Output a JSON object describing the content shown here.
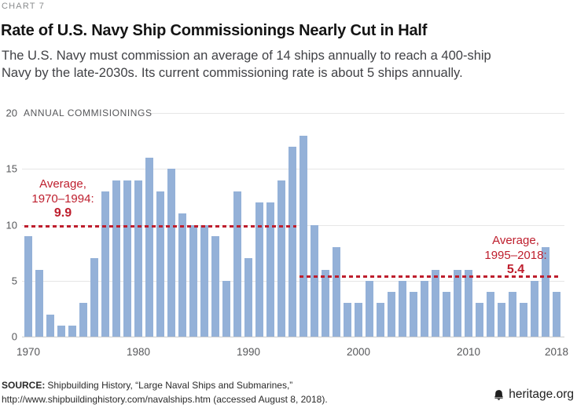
{
  "header": {
    "kicker": "CHART 7",
    "title": "Rate of U.S. Navy Ship Commissionings Nearly Cut in Half",
    "subtitle_lines": [
      "The U.S. Navy must commission an average of 14 ships annually to reach a 400-ship",
      "Navy by the late-2030s. Its current commissioning rate is about 5 ships annually."
    ]
  },
  "chart_data": {
    "type": "bar",
    "title": "Rate of U.S. Navy Ship Commissionings Nearly Cut in Half",
    "axis_title": "ANNUAL COMMISIONINGS",
    "ylabel": "Annual commissionings",
    "ylim": [
      0,
      20
    ],
    "yticks": [
      0,
      5,
      10,
      15,
      20
    ],
    "xticks": [
      1970,
      1980,
      1990,
      2000,
      2010,
      2018
    ],
    "grid": true,
    "legend": "none",
    "bar_color": "#94b1d8",
    "accent_red": "#be1e2d",
    "years": [
      1970,
      1971,
      1972,
      1973,
      1974,
      1975,
      1976,
      1977,
      1978,
      1979,
      1980,
      1981,
      1982,
      1983,
      1984,
      1985,
      1986,
      1987,
      1988,
      1989,
      1990,
      1991,
      1992,
      1993,
      1994,
      1995,
      1996,
      1997,
      1998,
      1999,
      2000,
      2001,
      2002,
      2003,
      2004,
      2005,
      2006,
      2007,
      2008,
      2009,
      2010,
      2011,
      2012,
      2013,
      2014,
      2015,
      2016,
      2017,
      2018
    ],
    "values": [
      9,
      6,
      2,
      1,
      1,
      3,
      7,
      13,
      14,
      14,
      14,
      16,
      13,
      15,
      11,
      10,
      10,
      9,
      5,
      13,
      7,
      12,
      12,
      14,
      17,
      18,
      10,
      6,
      8,
      3,
      3,
      5,
      3,
      4,
      5,
      4,
      5,
      6,
      4,
      6,
      6,
      3,
      4,
      3,
      4,
      3,
      5,
      8,
      4
    ],
    "annotations": [
      {
        "lines": [
          "Average,",
          "1970–1994:"
        ],
        "value_label": "9.9",
        "value": 9.9,
        "x_start": 1970,
        "x_end": 1994
      },
      {
        "lines": [
          "Average,",
          "1995–2018:"
        ],
        "value_label": "5.4",
        "value": 5.4,
        "x_start": 1995,
        "x_end": 2018
      }
    ]
  },
  "footer": {
    "source_label": "SOURCE:",
    "source_line1": "Shipbuilding History, “Large Naval Ships and Submarines,”",
    "source_line2": "http://www.shipbuildinghistory.com/navalships.htm (accessed August 8, 2018).",
    "brand": "heritage.org"
  }
}
